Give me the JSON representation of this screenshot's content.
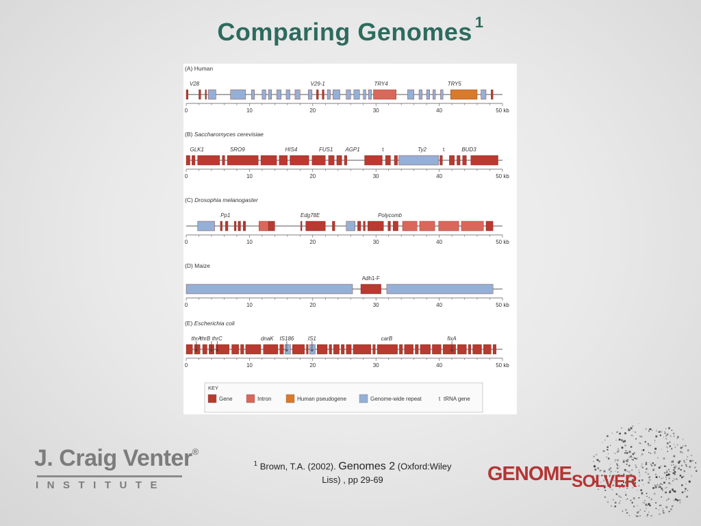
{
  "title": "Comparing Genomes",
  "title_superscript": "1",
  "figure": {
    "axis_ticks": [
      "0",
      "10",
      "20",
      "30",
      "40",
      "50 kb"
    ],
    "panels": [
      {
        "label": "(A) Human",
        "genes": [
          {
            "name": "V28",
            "pos": 1.3
          },
          {
            "name": "V29-1",
            "pos": 20.8
          },
          {
            "name": "TRY4",
            "pos": 30.8
          },
          {
            "name": "TRY5",
            "pos": 42.4
          }
        ],
        "features": [
          {
            "type": "gene",
            "start": 0.0,
            "end": 0.3
          },
          {
            "type": "gene",
            "start": 2.0,
            "end": 2.3
          },
          {
            "type": "gene",
            "start": 3.0,
            "end": 3.2
          },
          {
            "type": "repeat",
            "start": 3.5,
            "end": 4.7
          },
          {
            "type": "repeat",
            "start": 7.0,
            "end": 9.4
          },
          {
            "type": "repeat",
            "start": 10.3,
            "end": 10.8
          },
          {
            "type": "repeat",
            "start": 12.0,
            "end": 12.6
          },
          {
            "type": "repeat",
            "start": 13.0,
            "end": 13.5
          },
          {
            "type": "repeat",
            "start": 14.3,
            "end": 15.0
          },
          {
            "type": "repeat",
            "start": 15.8,
            "end": 16.4
          },
          {
            "type": "repeat",
            "start": 17.2,
            "end": 18.0
          },
          {
            "type": "repeat",
            "start": 19.3,
            "end": 19.9
          },
          {
            "type": "gene",
            "start": 20.6,
            "end": 20.9
          },
          {
            "type": "gene",
            "start": 21.5,
            "end": 21.8
          },
          {
            "type": "repeat",
            "start": 22.3,
            "end": 22.8
          },
          {
            "type": "repeat",
            "start": 23.2,
            "end": 24.3
          },
          {
            "type": "repeat",
            "start": 25.3,
            "end": 26.0
          },
          {
            "type": "repeat",
            "start": 26.5,
            "end": 27.4
          },
          {
            "type": "repeat",
            "start": 28.0,
            "end": 28.4
          },
          {
            "type": "repeat",
            "start": 28.8,
            "end": 29.3
          },
          {
            "type": "intron",
            "start": 29.6,
            "end": 33.2
          },
          {
            "type": "repeat",
            "start": 35.0,
            "end": 36.0
          },
          {
            "type": "repeat",
            "start": 36.8,
            "end": 37.3
          },
          {
            "type": "repeat",
            "start": 38.0,
            "end": 38.5
          },
          {
            "type": "repeat",
            "start": 39.0,
            "end": 39.4
          },
          {
            "type": "repeat",
            "start": 40.2,
            "end": 40.6
          },
          {
            "type": "pseudogene",
            "start": 41.8,
            "end": 46.0
          },
          {
            "type": "repeat",
            "start": 46.6,
            "end": 47.4
          },
          {
            "type": "gene",
            "start": 48.2,
            "end": 48.5
          }
        ]
      },
      {
        "label": "(B) Saccharomyces cerevisiae",
        "genes": [
          {
            "name": "GLK1",
            "pos": 1.7
          },
          {
            "name": "SRO9",
            "pos": 8.1
          },
          {
            "name": "HIS4",
            "pos": 16.6
          },
          {
            "name": "FUS1",
            "pos": 22.1
          },
          {
            "name": "AGP1",
            "pos": 26.3
          },
          {
            "name": "t",
            "pos": 31.1
          },
          {
            "name": "Ty2",
            "pos": 37.3
          },
          {
            "name": "t",
            "pos": 40.7
          },
          {
            "name": "BUD3",
            "pos": 44.7
          }
        ],
        "features": [
          {
            "type": "gene",
            "start": 0.0,
            "end": 0.6
          },
          {
            "type": "gene",
            "start": 0.9,
            "end": 1.4
          },
          {
            "type": "gene",
            "start": 1.8,
            "end": 5.3
          },
          {
            "type": "gene",
            "start": 5.7,
            "end": 6.1
          },
          {
            "type": "gene",
            "start": 6.5,
            "end": 11.4
          },
          {
            "type": "gene",
            "start": 11.8,
            "end": 14.3
          },
          {
            "type": "gene",
            "start": 14.7,
            "end": 16.0
          },
          {
            "type": "gene",
            "start": 16.4,
            "end": 19.4
          },
          {
            "type": "gene",
            "start": 19.9,
            "end": 22.0
          },
          {
            "type": "gene",
            "start": 22.5,
            "end": 23.4
          },
          {
            "type": "gene",
            "start": 23.8,
            "end": 24.6
          },
          {
            "type": "gene",
            "start": 25.0,
            "end": 25.4
          },
          {
            "type": "gene",
            "start": 28.2,
            "end": 31.0
          },
          {
            "type": "gene",
            "start": 31.5,
            "end": 32.3
          },
          {
            "type": "gene",
            "start": 32.9,
            "end": 33.4
          },
          {
            "type": "repeat",
            "start": 33.6,
            "end": 39.9
          },
          {
            "type": "gene",
            "start": 40.1,
            "end": 40.5
          },
          {
            "type": "gene",
            "start": 41.6,
            "end": 42.4
          },
          {
            "type": "gene",
            "start": 42.8,
            "end": 43.3
          },
          {
            "type": "gene",
            "start": 43.7,
            "end": 44.3
          },
          {
            "type": "gene",
            "start": 45.0,
            "end": 49.3
          }
        ]
      },
      {
        "label": "(C) Drosophia melanogaster",
        "genes": [
          {
            "name": "Pp1",
            "pos": 6.2
          },
          {
            "name": "Edg78E",
            "pos": 19.6
          },
          {
            "name": "Polycomb",
            "pos": 32.2
          }
        ],
        "features": [
          {
            "type": "repeat",
            "start": 1.8,
            "end": 4.5
          },
          {
            "type": "gene",
            "start": 5.4,
            "end": 5.7
          },
          {
            "type": "gene",
            "start": 6.2,
            "end": 6.6
          },
          {
            "type": "gene",
            "start": 7.6,
            "end": 7.9
          },
          {
            "type": "gene",
            "start": 8.2,
            "end": 8.6
          },
          {
            "type": "gene",
            "start": 9.0,
            "end": 9.4
          },
          {
            "type": "intron",
            "start": 11.5,
            "end": 13.0
          },
          {
            "type": "gene",
            "start": 13.0,
            "end": 14.0
          },
          {
            "type": "gene",
            "start": 18.1,
            "end": 18.3
          },
          {
            "type": "gene",
            "start": 18.9,
            "end": 22.0
          },
          {
            "type": "gene",
            "start": 23.1,
            "end": 23.5
          },
          {
            "type": "repeat",
            "start": 25.3,
            "end": 26.7
          },
          {
            "type": "gene",
            "start": 27.1,
            "end": 27.6
          },
          {
            "type": "gene",
            "start": 28.0,
            "end": 28.3
          },
          {
            "type": "gene",
            "start": 28.7,
            "end": 31.2
          },
          {
            "type": "gene",
            "start": 31.9,
            "end": 32.3
          },
          {
            "type": "gene",
            "start": 32.7,
            "end": 33.5
          },
          {
            "type": "intron",
            "start": 34.2,
            "end": 36.5
          },
          {
            "type": "intron",
            "start": 36.9,
            "end": 39.3
          },
          {
            "type": "intron",
            "start": 39.9,
            "end": 43.1
          },
          {
            "type": "intron",
            "start": 43.5,
            "end": 47.0
          },
          {
            "type": "gene",
            "start": 47.4,
            "end": 48.5
          }
        ]
      },
      {
        "label": "(D) Maize",
        "genes": [
          {
            "name": "Adh1-F",
            "pos": 29.2
          }
        ],
        "features": [
          {
            "type": "repeat",
            "start": 0.0,
            "end": 26.3
          },
          {
            "type": "gene",
            "start": 27.6,
            "end": 30.8
          },
          {
            "type": "repeat",
            "start": 31.7,
            "end": 48.5
          }
        ]
      },
      {
        "label": "(E) Escherichia coli",
        "genes": [
          {
            "name": "thrA",
            "pos": 1.6
          },
          {
            "name": "thrB",
            "pos": 3.0
          },
          {
            "name": "thrC",
            "pos": 4.9
          },
          {
            "name": "dnaK",
            "pos": 12.8
          },
          {
            "name": "IS186",
            "pos": 15.9
          },
          {
            "name": "IS1",
            "pos": 19.9
          },
          {
            "name": "carB",
            "pos": 31.7
          },
          {
            "name": "fixA",
            "pos": 42.0
          }
        ],
        "features": [
          {
            "type": "gene",
            "start": 0.0,
            "end": 1.0
          },
          {
            "type": "gene",
            "start": 1.3,
            "end": 2.2
          },
          {
            "type": "gene",
            "start": 2.6,
            "end": 3.3
          },
          {
            "type": "gene",
            "start": 3.6,
            "end": 4.4
          },
          {
            "type": "gene",
            "start": 4.7,
            "end": 6.8
          },
          {
            "type": "gene",
            "start": 7.2,
            "end": 8.3
          },
          {
            "type": "gene",
            "start": 8.6,
            "end": 9.1
          },
          {
            "type": "gene",
            "start": 9.4,
            "end": 11.8
          },
          {
            "type": "gene",
            "start": 12.2,
            "end": 14.5
          },
          {
            "type": "gene",
            "start": 14.8,
            "end": 15.4
          },
          {
            "type": "repeat",
            "start": 15.6,
            "end": 16.5
          },
          {
            "type": "gene",
            "start": 16.8,
            "end": 18.7
          },
          {
            "type": "gene",
            "start": 19.0,
            "end": 19.3
          },
          {
            "type": "repeat",
            "start": 19.5,
            "end": 20.4
          },
          {
            "type": "gene",
            "start": 20.7,
            "end": 22.3
          },
          {
            "type": "gene",
            "start": 22.6,
            "end": 23.0
          },
          {
            "type": "gene",
            "start": 23.3,
            "end": 24.2
          },
          {
            "type": "gene",
            "start": 24.5,
            "end": 25.0
          },
          {
            "type": "gene",
            "start": 25.3,
            "end": 26.1
          },
          {
            "type": "gene",
            "start": 26.4,
            "end": 29.2
          },
          {
            "type": "gene",
            "start": 29.5,
            "end": 29.9
          },
          {
            "type": "gene",
            "start": 30.2,
            "end": 33.4
          },
          {
            "type": "gene",
            "start": 33.7,
            "end": 34.2
          },
          {
            "type": "gene",
            "start": 34.5,
            "end": 35.9
          },
          {
            "type": "gene",
            "start": 36.2,
            "end": 36.7
          },
          {
            "type": "gene",
            "start": 37.0,
            "end": 38.6
          },
          {
            "type": "gene",
            "start": 38.9,
            "end": 40.3
          },
          {
            "type": "gene",
            "start": 40.6,
            "end": 42.6
          },
          {
            "type": "gene",
            "start": 42.9,
            "end": 44.3
          },
          {
            "type": "gene",
            "start": 44.6,
            "end": 45.0
          },
          {
            "type": "gene",
            "start": 45.3,
            "end": 46.7
          },
          {
            "type": "gene",
            "start": 47.0,
            "end": 48.2
          },
          {
            "type": "gene",
            "start": 48.5,
            "end": 49.0
          }
        ]
      }
    ],
    "key": {
      "title": "KEY",
      "items": [
        {
          "label": "Gene",
          "color": "#b83a30"
        },
        {
          "label": "Intron",
          "color": "#d9685a"
        },
        {
          "label": "Human pseudogene",
          "color": "#d87a2a"
        },
        {
          "label": "Genome-wide repeat",
          "color": "#95b0d6"
        },
        {
          "label": "tRNA gene",
          "symbol": "t"
        }
      ]
    }
  },
  "citation": {
    "superscript": "1",
    "author": "Brown, T.A. (2002).",
    "book": "Genomes 2",
    "publisher": "(Oxford:Wiley",
    "line2": "Liss) , pp 29-69"
  },
  "logos": {
    "jcvi_name": "J. Craig Venter",
    "jcvi_mark": "®",
    "jcvi_sub": "INSTITUTE",
    "gs_genome": "GENOME",
    "gs_solver": "SOLVER"
  },
  "colors": {
    "title": "#2e6b5e",
    "gene": "#b83a30",
    "intron": "#d9685a",
    "pseudogene": "#d87a2a",
    "repeat": "#95b0d6"
  }
}
